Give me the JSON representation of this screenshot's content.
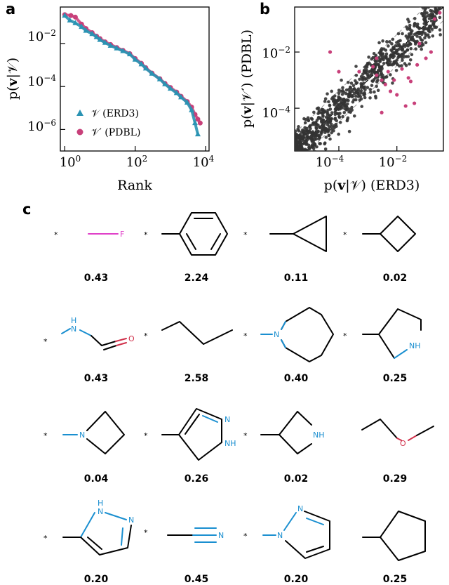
{
  "panels": {
    "a": "a",
    "b": "b",
    "c": "c"
  },
  "colors": {
    "erd3": "#2a93b3",
    "pdbl": "#c8407a",
    "scatter": "#333333",
    "atom_n": "#1a8fd0",
    "atom_o": "#d0304a",
    "atom_f": "#e040c8"
  },
  "chart_data": [
    {
      "id": "a",
      "type": "scatter",
      "xlabel": "Rank",
      "ylabel": "p(v|V)",
      "x_scale": "log",
      "y_scale": "log",
      "xlim": [
        1,
        10000
      ],
      "ylim": [
        1e-07,
        0.5
      ],
      "x_ticks": [
        "10^0",
        "10^2",
        "10^4"
      ],
      "y_ticks": [
        "10^-6",
        "10^-4",
        "10^-2"
      ],
      "legend_position": "lower-left",
      "series": [
        {
          "name": "𝒱 (ERD3)",
          "marker": "triangle",
          "points": [
            [
              1,
              0.2
            ],
            [
              1.4,
              0.12
            ],
            [
              2,
              0.09
            ],
            [
              3,
              0.06
            ],
            [
              4,
              0.04
            ],
            [
              6,
              0.028
            ],
            [
              8,
              0.02
            ],
            [
              10,
              0.015
            ],
            [
              14,
              0.011
            ],
            [
              20,
              0.008
            ],
            [
              30,
              0.006
            ],
            [
              45,
              0.0045
            ],
            [
              70,
              0.0032
            ],
            [
              100,
              0.0018
            ],
            [
              150,
              0.0011
            ],
            [
              200,
              0.0007
            ],
            [
              300,
              0.0004
            ],
            [
              500,
              0.00022
            ],
            [
              700,
              0.00013
            ],
            [
              1000,
              8e-05
            ],
            [
              1500,
              5e-05
            ],
            [
              2000,
              3.2e-05
            ],
            [
              3000,
              1.8e-05
            ],
            [
              4000,
              8e-06
            ],
            [
              5000,
              2e-06
            ],
            [
              6000,
              6e-07
            ]
          ]
        },
        {
          "name": "𝒱′ (PDBL)",
          "marker": "circle",
          "points": [
            [
              1,
              0.22
            ],
            [
              1.5,
              0.2
            ],
            [
              2,
              0.17
            ],
            [
              3,
              0.08
            ],
            [
              4,
              0.05
            ],
            [
              6,
              0.032
            ],
            [
              8,
              0.022
            ],
            [
              10,
              0.017
            ],
            [
              14,
              0.012
            ],
            [
              20,
              0.009
            ],
            [
              30,
              0.0065
            ],
            [
              45,
              0.0048
            ],
            [
              70,
              0.0034
            ],
            [
              100,
              0.002
            ],
            [
              150,
              0.0012
            ],
            [
              200,
              0.00075
            ],
            [
              300,
              0.00042
            ],
            [
              500,
              0.00023
            ],
            [
              700,
              0.00014
            ],
            [
              1000,
              9e-05
            ],
            [
              1500,
              5.5e-05
            ],
            [
              2000,
              3.5e-05
            ],
            [
              3000,
              2e-05
            ],
            [
              4000,
              1.1e-05
            ],
            [
              5000,
              5e-06
            ],
            [
              6000,
              3e-06
            ],
            [
              7000,
              2e-06
            ]
          ]
        }
      ]
    },
    {
      "id": "b",
      "type": "scatter",
      "xlabel": "p(v|V) (ERD3)",
      "ylabel": "p(v|V′) (PDBL)",
      "x_scale": "log",
      "y_scale": "log",
      "xlim": [
        3e-06,
        0.4
      ],
      "ylim": [
        3e-06,
        0.4
      ],
      "x_ticks": [
        "10^-4",
        "10^-2"
      ],
      "y_ticks": [
        "10^-4",
        "10^-2"
      ],
      "series": [
        {
          "name": "",
          "color": "scatter"
        },
        {
          "name": "",
          "color": "pdbl",
          "points": [
            [
              0.002,
              0.0015
            ],
            [
              0.003,
              0.001
            ],
            [
              0.004,
              0.0007
            ],
            [
              0.005,
              0.002
            ],
            [
              0.006,
              0.0004
            ],
            [
              0.008,
              0.001
            ],
            [
              0.01,
              0.0003
            ],
            [
              0.015,
              0.0025
            ],
            [
              0.02,
              0.00012
            ],
            [
              0.025,
              0.0012
            ],
            [
              0.03,
              0.0009
            ],
            [
              0.06,
              0.02
            ],
            [
              0.1,
              0.006
            ],
            [
              0.15,
              0.01
            ],
            [
              0.05,
              0.0035
            ],
            [
              0.0015,
              0.003
            ],
            [
              0.002,
              0.006
            ],
            [
              0.0005,
              0.002
            ],
            [
              0.003,
              7e-05
            ],
            [
              0.04,
              0.00015
            ],
            [
              0.3,
              0.25
            ],
            [
              0.2,
              0.15
            ],
            [
              0.0001,
              0.002
            ],
            [
              5e-05,
              0.01
            ]
          ]
        }
      ]
    }
  ],
  "molecules": [
    {
      "id": "m1",
      "value": "0.43",
      "star": "*",
      "labels": [
        "F"
      ]
    },
    {
      "id": "m2",
      "value": "2.24",
      "star": "*",
      "labels": []
    },
    {
      "id": "m3",
      "value": "0.11",
      "star": "*",
      "labels": []
    },
    {
      "id": "m4",
      "value": "0.02",
      "star": "*",
      "labels": []
    },
    {
      "id": "m5",
      "value": "0.43",
      "star": "*",
      "labels": [
        "H",
        "N",
        "O"
      ]
    },
    {
      "id": "m6",
      "value": "2.58",
      "star": "*",
      "labels": []
    },
    {
      "id": "m7",
      "value": "0.40",
      "star": "*",
      "labels": [
        "N"
      ]
    },
    {
      "id": "m8",
      "value": "0.25",
      "star": "*",
      "labels": [
        "NH"
      ]
    },
    {
      "id": "m9",
      "value": "0.04",
      "star": "*",
      "labels": [
        "N"
      ]
    },
    {
      "id": "m10",
      "value": "0.26",
      "star": "*",
      "labels": [
        "N",
        "NH"
      ]
    },
    {
      "id": "m11",
      "value": "0.02",
      "star": "*",
      "labels": [
        "NH"
      ]
    },
    {
      "id": "m12",
      "value": "0.29",
      "star": "",
      "labels": [
        "O"
      ]
    },
    {
      "id": "m13",
      "value": "0.20",
      "star": "*",
      "labels": [
        "H",
        "N",
        "N"
      ]
    },
    {
      "id": "m14",
      "value": "0.45",
      "star": "*",
      "labels": [
        "N"
      ]
    },
    {
      "id": "m15",
      "value": "0.20",
      "star": "*",
      "labels": [
        "N",
        "N"
      ]
    },
    {
      "id": "m16",
      "value": "0.25",
      "star": "",
      "labels": []
    }
  ]
}
